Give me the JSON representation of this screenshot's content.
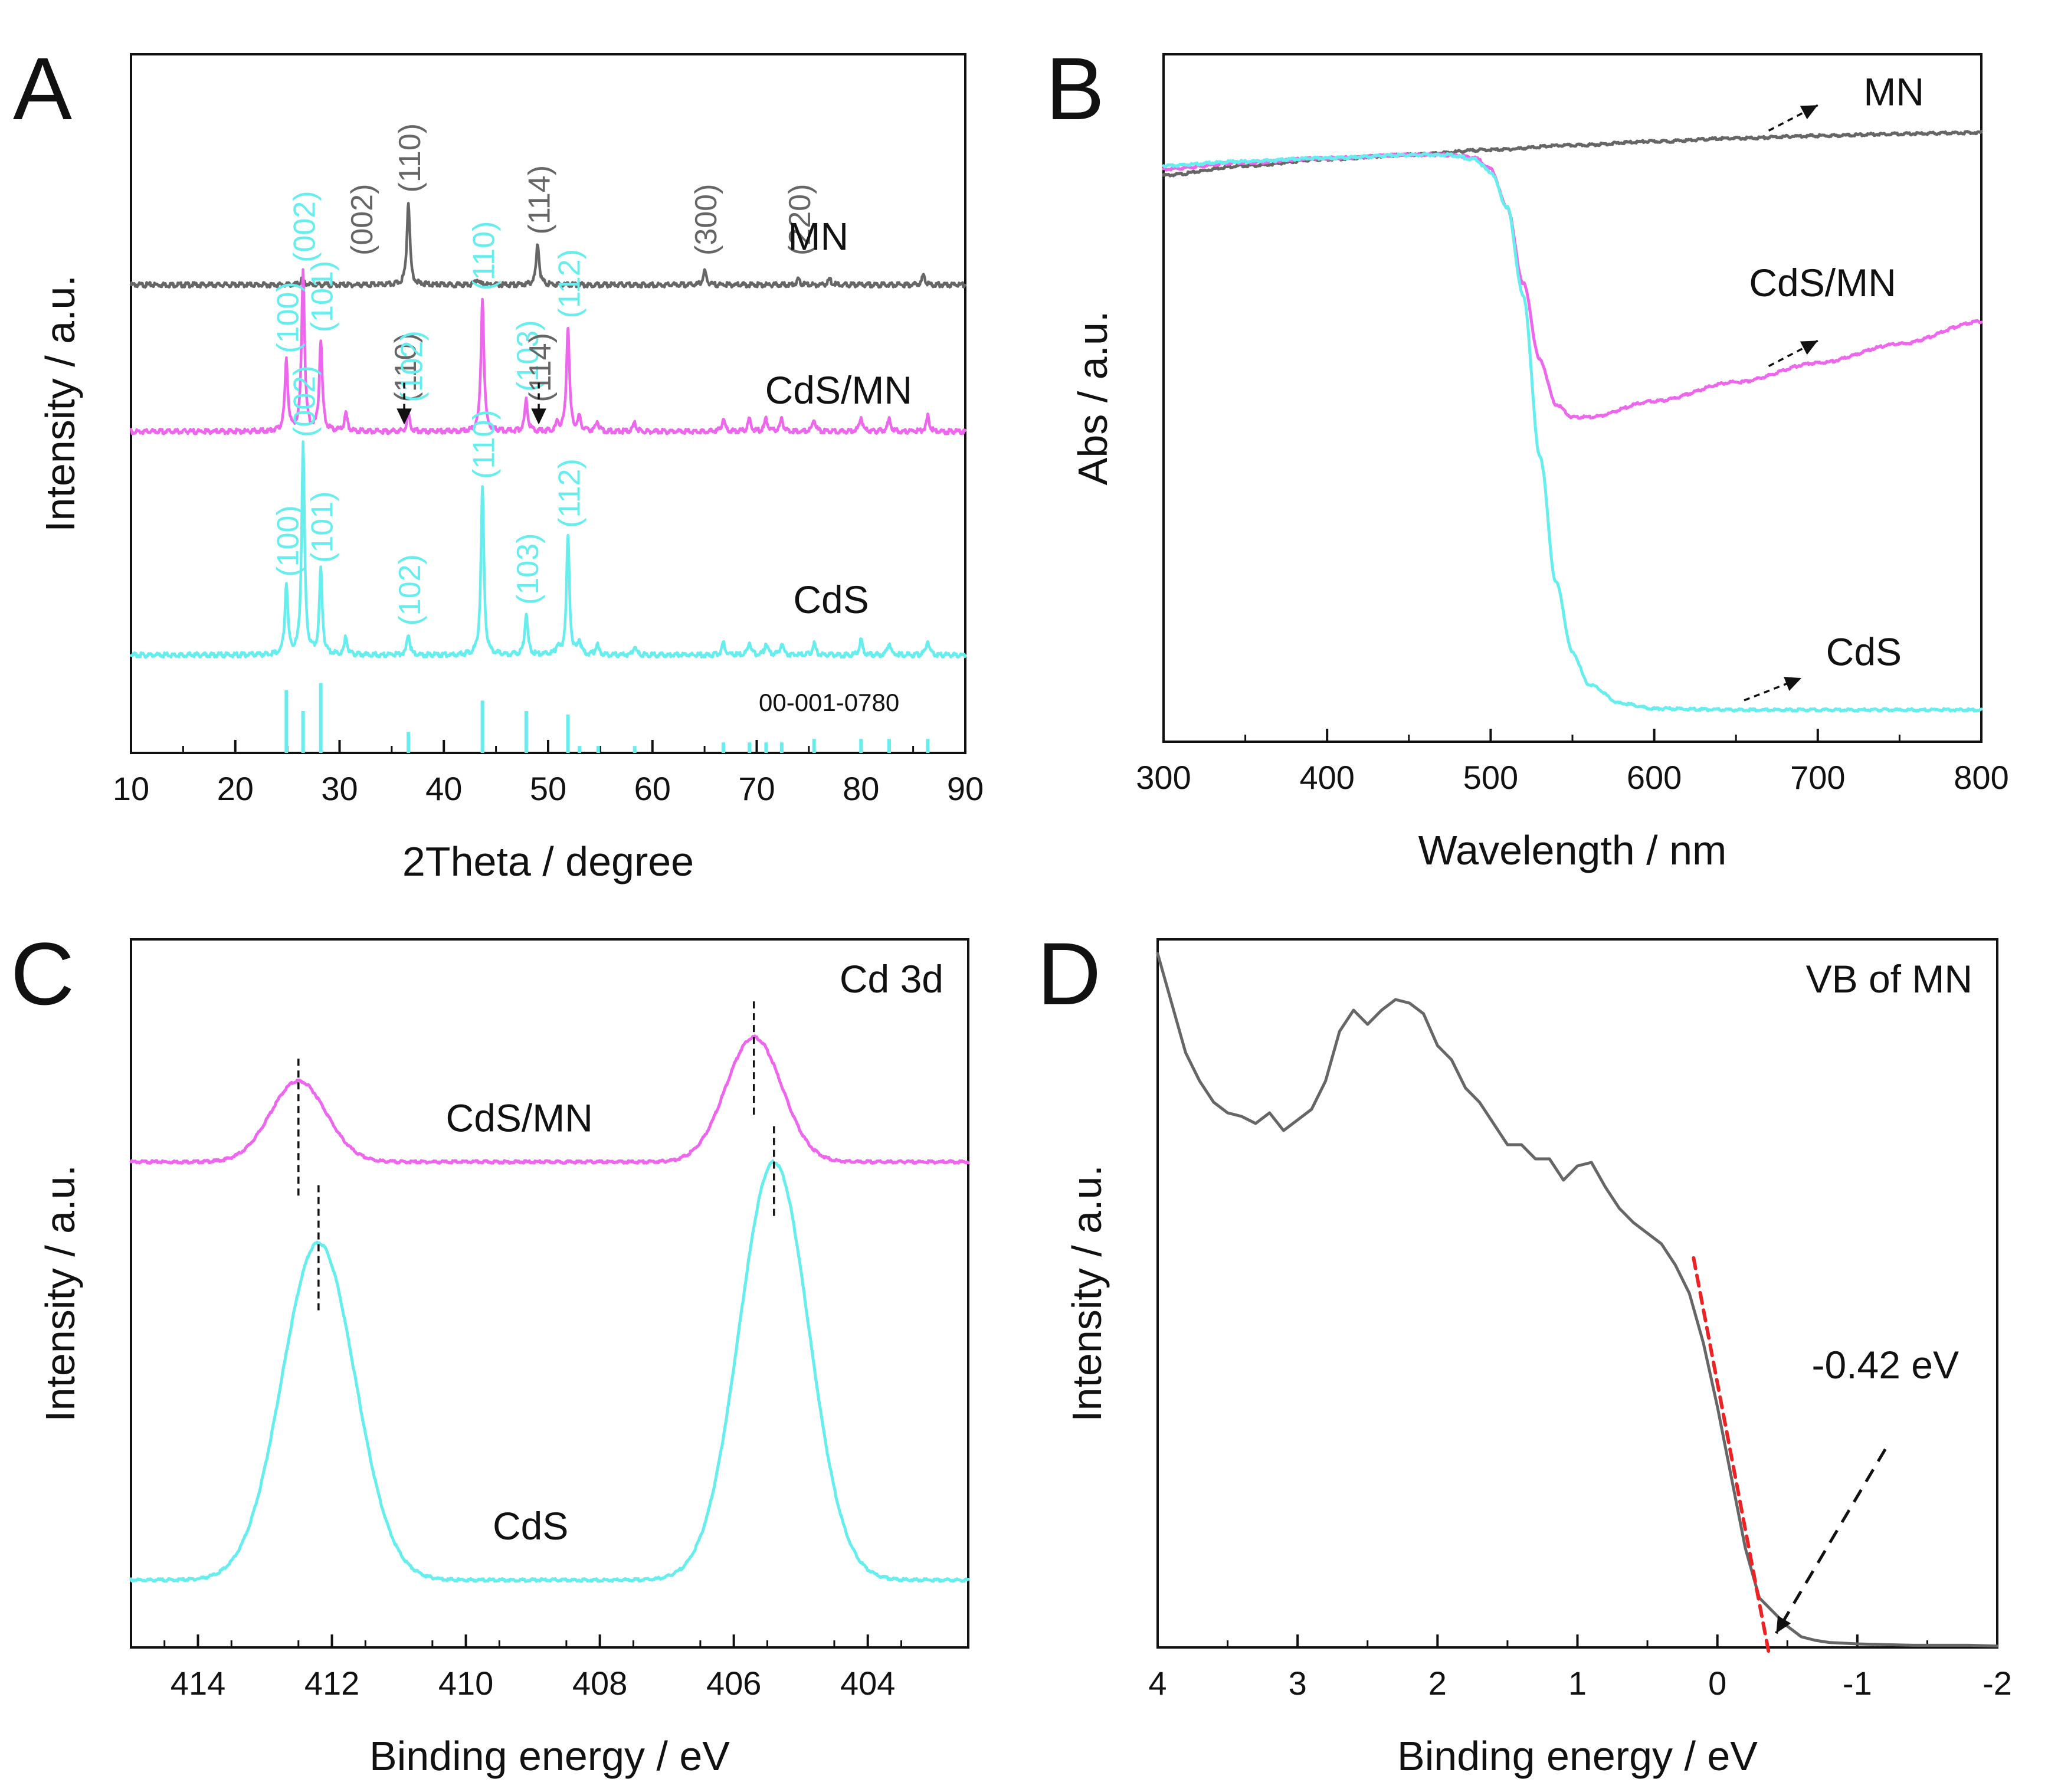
{
  "chart_data": [
    {
      "panel": "A",
      "type": "line",
      "xlabel": "2Theta / degree",
      "ylabel": "Intensity / a.u.",
      "xlim": [
        10,
        90
      ],
      "xticks": [
        10,
        20,
        30,
        40,
        50,
        60,
        70,
        80,
        90
      ],
      "xtick_labels": [
        "10",
        "20",
        "30",
        "40",
        "50",
        "60",
        "70",
        "80",
        "90"
      ],
      "y_axis_labels": "none",
      "colors": {
        "MN": "#666666",
        "CdS/MN": "#ee66ee",
        "CdS": "#66eeee",
        "reference": "#66eeee"
      },
      "series": [
        {
          "name": "MN",
          "baseline": 0.67,
          "peaks": [
            [
              26.4,
              0.008
            ],
            [
              36.6,
              0.12
            ],
            [
              43.2,
              0.008
            ],
            [
              49.0,
              0.06
            ],
            [
              65.0,
              0.02
            ],
            [
              74.0,
              0.008
            ],
            [
              77.0,
              0.008
            ],
            [
              86.0,
              0.015
            ]
          ],
          "labels": [
            {
              "text": "(002)",
              "x": 32.0,
              "color": "#666666"
            },
            {
              "text": "(110)",
              "x": 36.6,
              "color": "#666666"
            },
            {
              "text": "(114)",
              "x": 49.0,
              "color": "#666666"
            },
            {
              "text": "(300)",
              "x": 65.0,
              "color": "#666666"
            },
            {
              "text": "(220)",
              "x": 74.0,
              "color": "#666666"
            }
          ]
        },
        {
          "name": "CdS/MN",
          "baseline": 0.46,
          "peaks": [
            [
              24.9,
              0.1
            ],
            [
              26.5,
              0.23
            ],
            [
              28.2,
              0.13
            ],
            [
              30.6,
              0.025
            ],
            [
              36.6,
              0.025
            ],
            [
              43.7,
              0.19
            ],
            [
              47.9,
              0.045
            ],
            [
              50.9,
              0.012
            ],
            [
              51.9,
              0.15
            ],
            [
              53.0,
              0.02
            ],
            [
              54.7,
              0.015
            ],
            [
              58.3,
              0.012
            ],
            [
              66.8,
              0.018
            ],
            [
              69.3,
              0.018
            ],
            [
              70.9,
              0.018
            ],
            [
              72.4,
              0.018
            ],
            [
              75.5,
              0.018
            ],
            [
              80.0,
              0.022
            ],
            [
              82.7,
              0.018
            ],
            [
              86.4,
              0.022
            ]
          ],
          "labels": [
            {
              "text": "(100)",
              "x": 24.9,
              "color": "#66eeee"
            },
            {
              "text": "(002)",
              "x": 26.5,
              "color": "#66eeee"
            },
            {
              "text": "(101)",
              "x": 28.2,
              "color": "#66eeee"
            },
            {
              "text": "(110)",
              "x": 36.2,
              "color": "#666666"
            },
            {
              "text": "(102)",
              "x": 36.8,
              "color": "#66eeee"
            },
            {
              "text": "(110)",
              "x": 43.7,
              "color": "#66eeee"
            },
            {
              "text": "(103)",
              "x": 47.9,
              "color": "#66eeee"
            },
            {
              "text": "(114)",
              "x": 49.1,
              "color": "#666666"
            },
            {
              "text": "(112)",
              "x": 51.9,
              "color": "#66eeee"
            }
          ]
        },
        {
          "name": "CdS",
          "baseline": 0.14,
          "peaks": [
            [
              24.9,
              0.1
            ],
            [
              26.5,
              0.3
            ],
            [
              28.2,
              0.12
            ],
            [
              30.6,
              0.025
            ],
            [
              36.6,
              0.03
            ],
            [
              43.7,
              0.24
            ],
            [
              47.9,
              0.06
            ],
            [
              50.9,
              0.012
            ],
            [
              51.9,
              0.17
            ],
            [
              53.0,
              0.02
            ],
            [
              54.7,
              0.015
            ],
            [
              58.3,
              0.012
            ],
            [
              66.8,
              0.018
            ],
            [
              69.3,
              0.018
            ],
            [
              70.9,
              0.018
            ],
            [
              72.4,
              0.018
            ],
            [
              75.5,
              0.018
            ],
            [
              80.0,
              0.022
            ],
            [
              82.7,
              0.018
            ],
            [
              86.4,
              0.022
            ]
          ],
          "labels": [
            {
              "text": "(100)",
              "x": 24.9,
              "color": "#66eeee"
            },
            {
              "text": "(002)",
              "x": 26.5,
              "color": "#66eeee"
            },
            {
              "text": "(101)",
              "x": 28.2,
              "color": "#66eeee"
            },
            {
              "text": "(102)",
              "x": 36.6,
              "color": "#66eeee"
            },
            {
              "text": "(110)",
              "x": 43.7,
              "color": "#66eeee"
            },
            {
              "text": "(103)",
              "x": 47.9,
              "color": "#66eeee"
            },
            {
              "text": "(112)",
              "x": 51.9,
              "color": "#66eeee"
            }
          ]
        }
      ],
      "reference": {
        "name": "00-001-0780",
        "lines": [
          [
            24.9,
            0.09
          ],
          [
            26.5,
            0.06
          ],
          [
            28.2,
            0.1
          ],
          [
            36.6,
            0.03
          ],
          [
            43.7,
            0.075
          ],
          [
            47.9,
            0.06
          ],
          [
            51.9,
            0.055
          ],
          [
            53.0,
            0.01
          ],
          [
            54.8,
            0.01
          ],
          [
            58.3,
            0.01
          ],
          [
            66.8,
            0.015
          ],
          [
            69.3,
            0.015
          ],
          [
            70.9,
            0.015
          ],
          [
            72.4,
            0.015
          ],
          [
            75.5,
            0.02
          ],
          [
            80.0,
            0.02
          ],
          [
            82.7,
            0.02
          ],
          [
            86.4,
            0.02
          ]
        ]
      },
      "series_labels": [
        {
          "text": "MN",
          "x": 73.0,
          "y": 0.72
        },
        {
          "text": "CdS/MN",
          "x": 70.8,
          "y": 0.5
        },
        {
          "text": "CdS",
          "x": 73.5,
          "y": 0.2
        },
        {
          "text": "00-001-0780",
          "x": 70.2,
          "y": 0.06
        }
      ],
      "arrows": [
        {
          "x": 36.2,
          "y_from": 0.53,
          "y_to": 0.47
        },
        {
          "x": 49.1,
          "y_from": 0.53,
          "y_to": 0.47
        }
      ],
      "panel_label": "A"
    },
    {
      "panel": "B",
      "type": "line",
      "xlabel": "Wavelength / nm",
      "ylabel": "Abs / a.u.",
      "xlim": [
        300,
        800
      ],
      "xticks": [
        300,
        400,
        500,
        600,
        700,
        800
      ],
      "xtick_labels": [
        "300",
        "400",
        "500",
        "600",
        "700",
        "800"
      ],
      "y_axis_labels": "none",
      "series": [
        {
          "name": "MN",
          "color": "#666666",
          "x": [
            300,
            350,
            400,
            450,
            500,
            550,
            600,
            650,
            700,
            750,
            800
          ],
          "y": [
            0.89,
            0.905,
            0.915,
            0.922,
            0.93,
            0.937,
            0.943,
            0.948,
            0.952,
            0.955,
            0.957
          ]
        },
        {
          "name": "CdS/MN",
          "color": "#ee66ee",
          "x": [
            300,
            350,
            400,
            450,
            475,
            490,
            500,
            510,
            520,
            530,
            540,
            550,
            560,
            600,
            650,
            700,
            750,
            800
          ],
          "y": [
            0.9,
            0.91,
            0.917,
            0.922,
            0.922,
            0.918,
            0.9,
            0.84,
            0.72,
            0.6,
            0.53,
            0.51,
            0.51,
            0.535,
            0.565,
            0.595,
            0.625,
            0.66
          ]
        },
        {
          "name": "CdS",
          "color": "#66eeee",
          "x": [
            300,
            350,
            400,
            450,
            475,
            490,
            500,
            510,
            520,
            530,
            540,
            550,
            560,
            580,
            600,
            650,
            700,
            750,
            800
          ],
          "y": [
            0.905,
            0.912,
            0.917,
            0.922,
            0.922,
            0.915,
            0.895,
            0.84,
            0.7,
            0.45,
            0.25,
            0.14,
            0.09,
            0.06,
            0.052,
            0.05,
            0.05,
            0.05,
            0.05
          ]
        }
      ],
      "series_labels": [
        {
          "text": "MN",
          "x": 728,
          "y": 1.0
        },
        {
          "text": "CdS/MN",
          "x": 658,
          "y": 0.7
        },
        {
          "text": "CdS",
          "x": 705,
          "y": 0.12
        }
      ],
      "arrows": [
        {
          "x_from": 670,
          "y_from": 0.96,
          "x_to": 700,
          "y_to": 1.0
        },
        {
          "x_from": 670,
          "y_from": 0.59,
          "x_to": 700,
          "y_to": 0.63
        },
        {
          "x_from": 655,
          "y_from": 0.065,
          "x_to": 690,
          "y_to": 0.1
        }
      ],
      "panel_label": "B"
    },
    {
      "panel": "C",
      "type": "line",
      "title": "Cd 3d",
      "xlabel": "Binding energy / eV",
      "ylabel": "Intensity / a.u.",
      "xlim": [
        415,
        402.5
      ],
      "xticks": [
        414,
        412,
        410,
        408,
        406,
        404
      ],
      "xtick_labels": [
        "414",
        "412",
        "410",
        "408",
        "406",
        "404"
      ],
      "y_axis_labels": "none",
      "series": [
        {
          "name": "CdS/MN",
          "color": "#ee66ee",
          "baseline": 0.72,
          "peaks": [
            [
              412.5,
              0.12,
              0.5
            ],
            [
              405.7,
              0.185,
              0.5
            ]
          ]
        },
        {
          "name": "CdS",
          "color": "#66eeee",
          "baseline": 0.1,
          "peaks": [
            [
              412.2,
              0.5,
              0.65
            ],
            [
              405.4,
              0.62,
              0.62
            ]
          ]
        }
      ],
      "series_labels": [
        {
          "text": "CdS/MN",
          "x": 410.3,
          "y": 0.765
        },
        {
          "text": "CdS",
          "x": 409.6,
          "y": 0.16
        }
      ],
      "markers": [
        {
          "x": 412.5,
          "y_from": 0.67,
          "y_to": 0.88
        },
        {
          "x": 405.7,
          "y_from": 0.79,
          "y_to": 0.96
        },
        {
          "x": 412.2,
          "y_from": 0.5,
          "y_to": 0.69
        },
        {
          "x": 405.4,
          "y_from": 0.64,
          "y_to": 0.78
        }
      ],
      "panel_label": "C"
    },
    {
      "panel": "D",
      "type": "line",
      "title": "VB of MN",
      "xlabel": "Binding energy / eV",
      "ylabel": "Intensity / a.u.",
      "xlim": [
        4,
        -2
      ],
      "xticks": [
        4,
        3,
        2,
        1,
        0,
        -1,
        -2
      ],
      "xtick_labels": [
        "4",
        "3",
        "2",
        "1",
        "0",
        "-1",
        "-2"
      ],
      "y_axis_labels": "none",
      "series": [
        {
          "name": "VB of MN",
          "color": "#666666",
          "x": [
            4.0,
            3.9,
            3.8,
            3.7,
            3.6,
            3.5,
            3.4,
            3.3,
            3.2,
            3.1,
            3.0,
            2.9,
            2.8,
            2.7,
            2.6,
            2.5,
            2.4,
            2.3,
            2.2,
            2.1,
            2.0,
            1.9,
            1.8,
            1.7,
            1.6,
            1.5,
            1.4,
            1.3,
            1.2,
            1.1,
            1.0,
            0.9,
            0.8,
            0.7,
            0.6,
            0.5,
            0.4,
            0.3,
            0.2,
            0.1,
            0.0,
            -0.1,
            -0.2,
            -0.3,
            -0.4,
            -0.5,
            -0.6,
            -0.7,
            -0.8,
            -0.9,
            -1.0,
            -1.2,
            -1.4,
            -1.6,
            -1.8,
            -2.0
          ],
          "y": [
            0.98,
            0.91,
            0.84,
            0.8,
            0.77,
            0.755,
            0.75,
            0.74,
            0.755,
            0.73,
            0.745,
            0.76,
            0.8,
            0.87,
            0.9,
            0.88,
            0.9,
            0.915,
            0.91,
            0.895,
            0.85,
            0.83,
            0.79,
            0.77,
            0.74,
            0.71,
            0.71,
            0.69,
            0.69,
            0.66,
            0.68,
            0.685,
            0.65,
            0.62,
            0.6,
            0.585,
            0.57,
            0.54,
            0.5,
            0.43,
            0.34,
            0.24,
            0.14,
            0.07,
            0.05,
            0.03,
            0.015,
            0.01,
            0.007,
            0.006,
            0.005,
            0.004,
            0.003,
            0.003,
            0.003,
            0.002
          ]
        }
      ],
      "fit_line": {
        "x": [
          0.17,
          -0.37
        ],
        "y": [
          0.55,
          -0.01
        ],
        "color": "#ee2222"
      },
      "annotation": {
        "text": "-0.42 eV",
        "x": -1.2,
        "y": 0.38
      },
      "arrow": {
        "x_from": -1.2,
        "y_from": 0.28,
        "x_to": -0.42,
        "y_to": 0.02
      },
      "panel_label": "D"
    }
  ]
}
